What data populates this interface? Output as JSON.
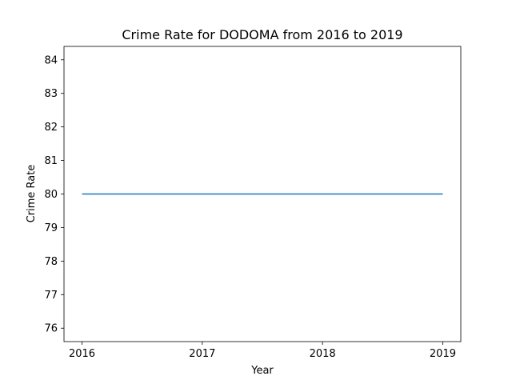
{
  "chart_data": {
    "type": "line",
    "title": "Crime Rate for DODOMA from 2016 to 2019",
    "xlabel": "Year",
    "ylabel": "Crime Rate",
    "x": [
      2016,
      2017,
      2018,
      2019
    ],
    "series": [
      {
        "values": [
          80,
          80,
          80,
          80
        ],
        "color": "#1f77b4"
      }
    ],
    "xticks": [
      "2016",
      "2017",
      "2018",
      "2019"
    ],
    "yticks": [
      "76",
      "77",
      "78",
      "79",
      "80",
      "81",
      "82",
      "83",
      "84"
    ],
    "xlim": [
      2015.85,
      2019.15
    ],
    "ylim": [
      75.6,
      84.4
    ],
    "grid": false
  }
}
